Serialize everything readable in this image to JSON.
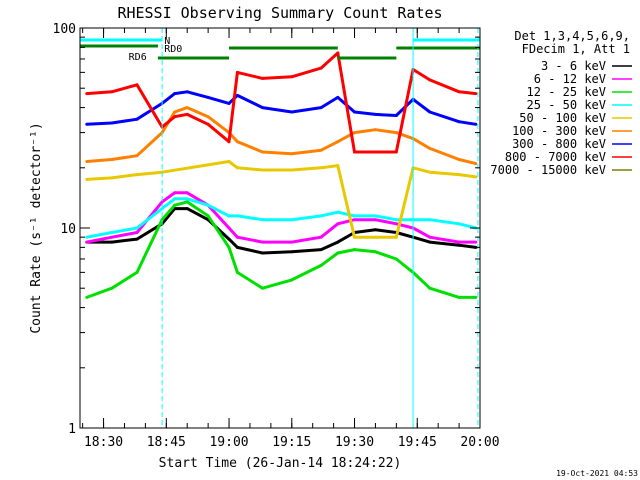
{
  "chart_data": {
    "type": "line",
    "title": "RHESSI Observing Summary Count Rates",
    "xlabel": "Start Time (26-Jan-14 18:24:22)",
    "ylabel": "Count Rate (s⁻¹ detector⁻¹)",
    "y_scale": "log",
    "ylim": [
      1,
      100
    ],
    "xlim": [
      "18:24:22",
      "20:00:00"
    ],
    "x_ticks": [
      "18:30",
      "18:45",
      "19:00",
      "19:15",
      "19:30",
      "19:45",
      "20:00"
    ],
    "y_ticks": [
      "1",
      "10",
      "100"
    ],
    "grid": false,
    "legend_position": "right",
    "legend_header": [
      "Det 1,3,4,5,6,9,",
      "FDecim 1, Att 1"
    ],
    "timestamp": "19-Oct-2021 04:53",
    "series": [
      {
        "name": "3 - 6 keV",
        "color": "#000000",
        "x": [
          "18:26",
          "18:32",
          "18:38",
          "18:44",
          "18:47",
          "18:50",
          "18:55",
          "19:00",
          "19:02",
          "19:08",
          "19:15",
          "19:22",
          "19:26",
          "19:30",
          "19:35",
          "19:40",
          "19:44",
          "19:48",
          "19:55",
          "19:59"
        ],
        "y": [
          8.5,
          8.5,
          8.8,
          10.5,
          12.5,
          12.5,
          11,
          8.8,
          8,
          7.5,
          7.6,
          7.8,
          8.5,
          9.5,
          9.8,
          9.5,
          9,
          8.5,
          8.2,
          8
        ]
      },
      {
        "name": "6 - 12 keV",
        "color": "#ff00ff",
        "x": [
          "18:26",
          "18:32",
          "18:38",
          "18:44",
          "18:47",
          "18:50",
          "18:55",
          "19:00",
          "19:02",
          "19:08",
          "19:15",
          "19:22",
          "19:26",
          "19:30",
          "19:35",
          "19:40",
          "19:44",
          "19:48",
          "19:55",
          "19:59"
        ],
        "y": [
          8.5,
          9,
          9.5,
          13.5,
          15,
          15,
          13,
          10,
          9,
          8.5,
          8.5,
          9,
          10.5,
          11,
          11,
          10.5,
          10,
          9,
          8.5,
          8.5
        ]
      },
      {
        "name": "12 - 25 keV",
        "color": "#00e000",
        "x": [
          "18:26",
          "18:32",
          "18:38",
          "18:44",
          "18:47",
          "18:50",
          "18:55",
          "19:00",
          "19:02",
          "19:08",
          "19:15",
          "19:22",
          "19:26",
          "19:30",
          "19:35",
          "19:40",
          "19:44",
          "19:48",
          "19:55",
          "19:59"
        ],
        "y": [
          4.5,
          5,
          6,
          11,
          13,
          13.5,
          11.5,
          8,
          6,
          5,
          5.5,
          6.5,
          7.5,
          7.8,
          7.6,
          7,
          6,
          5,
          4.5,
          4.5
        ]
      },
      {
        "name": "25 - 50 keV",
        "color": "#00ffff",
        "x": [
          "18:26",
          "18:32",
          "18:38",
          "18:44",
          "18:47",
          "18:50",
          "18:55",
          "19:00",
          "19:02",
          "19:08",
          "19:15",
          "19:22",
          "19:26",
          "19:30",
          "19:35",
          "19:40",
          "19:44",
          "19:48",
          "19:55",
          "19:59"
        ],
        "y": [
          9,
          9.5,
          10,
          12.5,
          14,
          14,
          13,
          11.5,
          11.5,
          11,
          11,
          11.5,
          12,
          11.5,
          11.5,
          11,
          11,
          11,
          10.5,
          10
        ]
      },
      {
        "name": "50 - 100 keV",
        "color": "#e8c800",
        "x": [
          "18:26",
          "18:32",
          "18:38",
          "18:44",
          "19:00",
          "19:02",
          "19:08",
          "19:15",
          "19:22",
          "19:26",
          "19:30",
          "19:35",
          "19:40",
          "19:44",
          "19:48",
          "19:55",
          "19:59"
        ],
        "y": [
          17.5,
          17.8,
          18.5,
          19,
          21.5,
          20,
          19.5,
          19.5,
          20,
          20.5,
          9,
          9,
          9,
          20,
          19,
          18.5,
          18
        ]
      },
      {
        "name": "100 - 300 keV",
        "color": "#ff8000",
        "x": [
          "18:26",
          "18:32",
          "18:38",
          "18:44",
          "18:47",
          "18:50",
          "18:55",
          "19:00",
          "19:02",
          "19:08",
          "19:15",
          "19:22",
          "19:26",
          "19:30",
          "19:35",
          "19:40",
          "19:44",
          "19:48",
          "19:55",
          "19:59"
        ],
        "y": [
          21.5,
          22,
          23,
          30,
          38,
          40,
          36,
          30,
          27,
          24,
          23.5,
          24.5,
          27,
          30,
          31,
          30,
          28,
          25,
          22,
          21
        ]
      },
      {
        "name": "300 - 800 keV",
        "color": "#0000ff",
        "x": [
          "18:26",
          "18:32",
          "18:38",
          "18:44",
          "18:47",
          "18:50",
          "18:55",
          "19:00",
          "19:02",
          "19:08",
          "19:15",
          "19:22",
          "19:26",
          "19:30",
          "19:35",
          "19:40",
          "19:44",
          "19:48",
          "19:55",
          "19:59"
        ],
        "y": [
          33,
          33.5,
          35,
          42,
          47,
          48,
          45,
          42,
          46,
          40,
          38,
          40,
          45,
          38,
          37,
          36.5,
          44,
          38,
          34,
          33
        ]
      },
      {
        "name": "800 - 7000 keV",
        "color": "#ff0000",
        "x": [
          "18:26",
          "18:32",
          "18:38",
          "18:44",
          "18:47",
          "18:50",
          "18:55",
          "19:00",
          "19:02",
          "19:08",
          "19:15",
          "19:22",
          "19:26",
          "19:30",
          "19:35",
          "19:40",
          "19:44",
          "19:48",
          "19:55",
          "19:59"
        ],
        "y": [
          47,
          48,
          52,
          32,
          36,
          37,
          33,
          27,
          60,
          56,
          57,
          63,
          75,
          24,
          24,
          24,
          62,
          55,
          48,
          47
        ]
      },
      {
        "name": "7000 - 15000 keV",
        "color": "#808000",
        "x": [],
        "y": []
      }
    ],
    "annotations": [
      {
        "label": "N",
        "color": "#00ffff",
        "type": "state bar",
        "intervals": [
          [
            "18:24:22",
            "18:44:00"
          ],
          [
            "19:44:00",
            "20:00:00"
          ]
        ]
      },
      {
        "label": "RD0",
        "color": "#008000",
        "type": "state bar",
        "intervals": [
          [
            "18:24:22",
            "18:43:00"
          ],
          [
            "18:43:00",
            "19:00:00"
          ],
          [
            "19:00:00",
            "19:26:00"
          ],
          [
            "19:26:00",
            "19:40:00"
          ],
          [
            "19:40:00",
            "20:00:00"
          ]
        ]
      },
      {
        "label": "RD6",
        "color": "#008000",
        "type": "text"
      }
    ]
  }
}
